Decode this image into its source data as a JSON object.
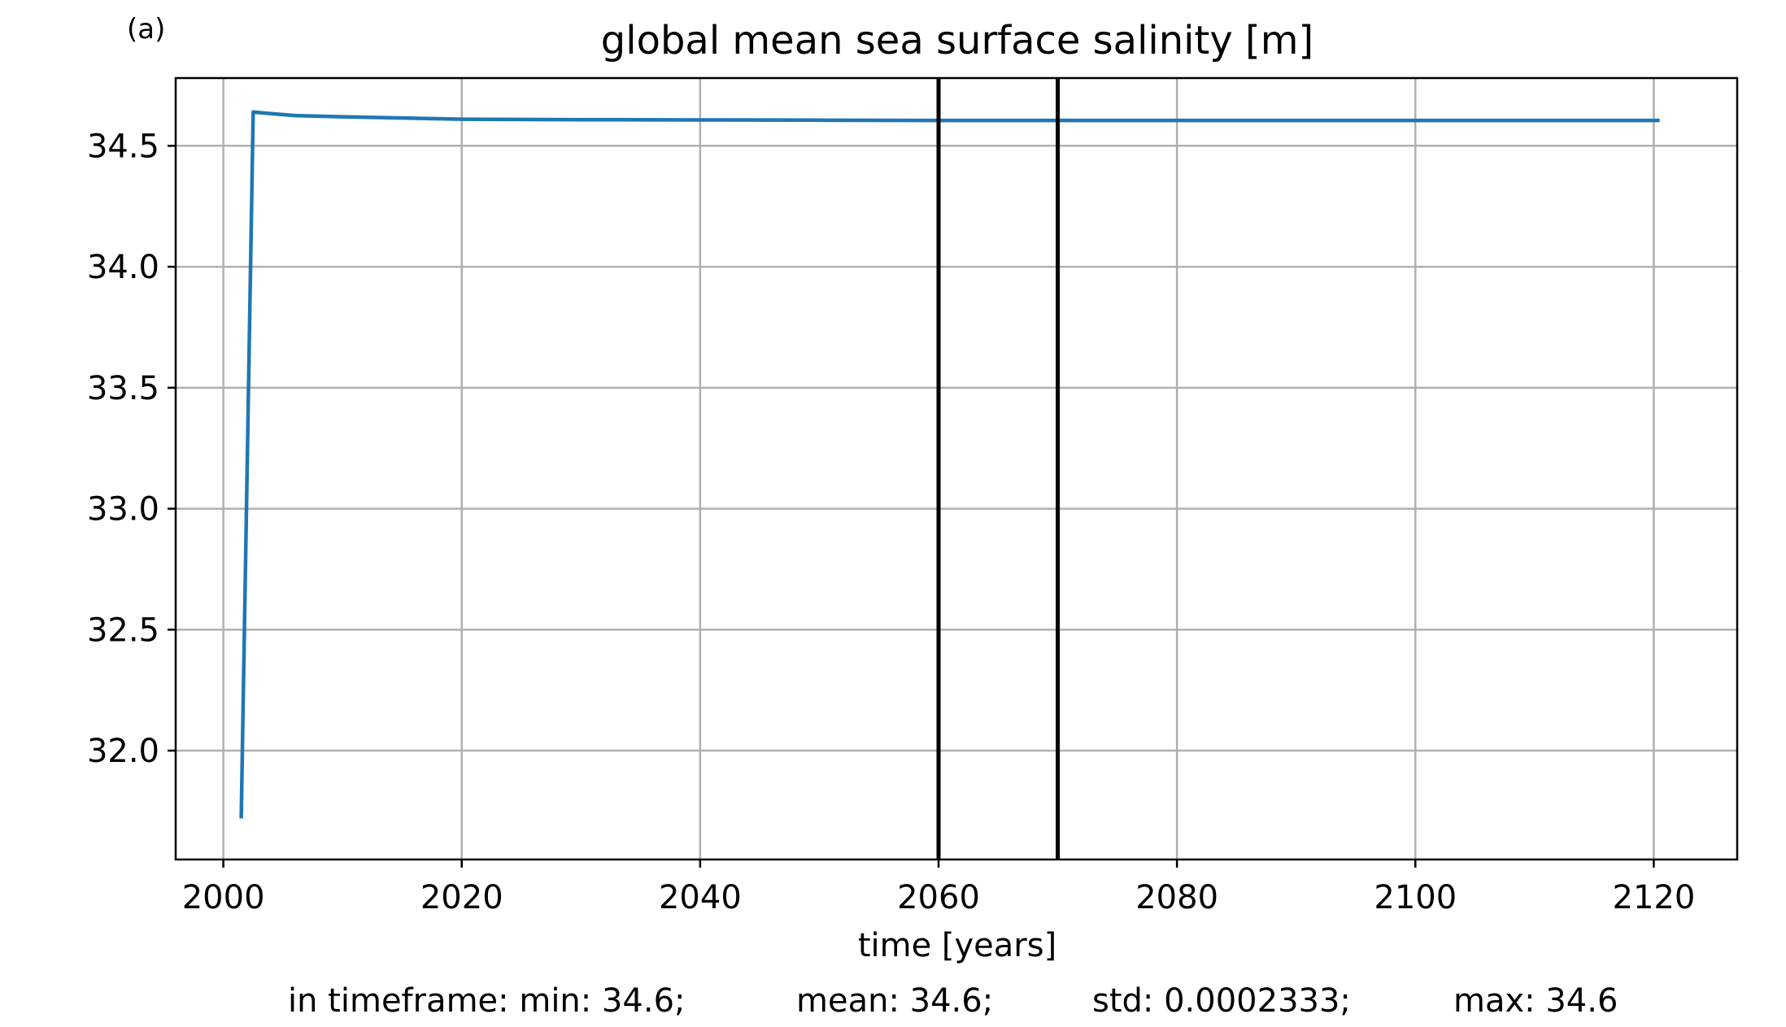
{
  "panel_label": "(a)",
  "chart_data": {
    "type": "line",
    "title": "global mean sea surface salinity [m]",
    "xlabel": "time [years]",
    "ylabel": "",
    "xlim": [
      1996,
      2127
    ],
    "ylim": [
      31.55,
      34.78
    ],
    "xticks": [
      2000,
      2020,
      2040,
      2060,
      2080,
      2100,
      2120
    ],
    "xtick_labels": [
      "2000",
      "2020",
      "2040",
      "2060",
      "2080",
      "2100",
      "2120"
    ],
    "yticks": [
      32.0,
      32.5,
      33.0,
      33.5,
      34.0,
      34.5
    ],
    "ytick_labels": [
      "32.0",
      "32.5",
      "33.0",
      "33.5",
      "34.0",
      "34.5"
    ],
    "grid": true,
    "series": [
      {
        "color": "#1f77b4",
        "x": [
          2001.5,
          2002.5,
          2003.5,
          2006,
          2010,
          2015,
          2020,
          2030,
          2040,
          2050,
          2060,
          2070,
          2080,
          2090,
          2100,
          2110,
          2120.5
        ],
        "y": [
          31.72,
          34.64,
          34.635,
          34.625,
          34.62,
          34.615,
          34.61,
          34.608,
          34.607,
          34.606,
          34.605,
          34.605,
          34.605,
          34.605,
          34.605,
          34.605,
          34.605
        ]
      }
    ],
    "vlines": [
      {
        "x": 2060,
        "color": "#000000"
      },
      {
        "x": 2070,
        "color": "#000000"
      }
    ]
  },
  "stats": {
    "min": "in timeframe: min: 34.6;",
    "mean": "mean: 34.6;",
    "std": "std: 0.0002333;",
    "max": "max: 34.6"
  }
}
